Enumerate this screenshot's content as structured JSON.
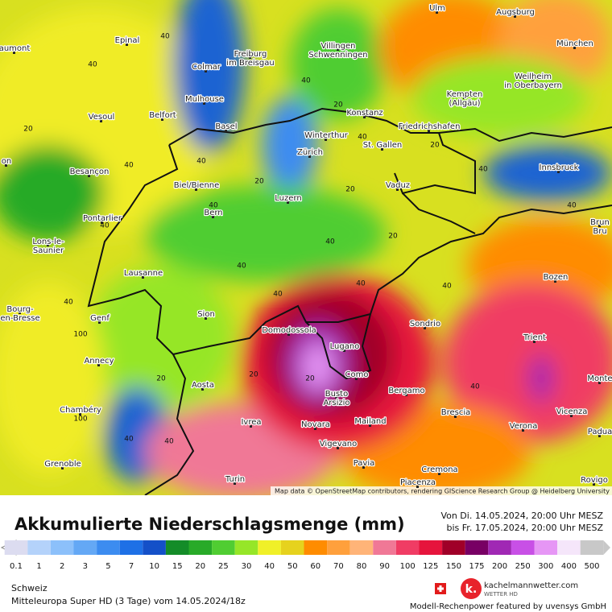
{
  "map": {
    "cities": [
      [
        "Ulm"
      ],
      [
        "Augsburg"
      ],
      [
        "Epinal"
      ],
      [
        "aumont"
      ],
      [
        "Colmar"
      ],
      [
        "Freiburg",
        "im Breisgau"
      ],
      [
        "Villingen",
        "Schwenningen"
      ],
      [
        "München"
      ],
      [
        "Weilheim",
        "in Oberbayern"
      ],
      [
        "Kempten",
        "(Allgäu)"
      ],
      [
        "Mulhouse"
      ],
      [
        "Vesoul"
      ],
      [
        "Belfort"
      ],
      [
        "Basel"
      ],
      [
        "Konstanz"
      ],
      [
        "Friedrichshafen"
      ],
      [
        "Winterthur"
      ],
      [
        "St. Gallen"
      ],
      [
        "Zürich"
      ],
      [
        "Innsbruck"
      ],
      [
        "on"
      ],
      [
        "Besançon"
      ],
      [
        "Biel/Bienne"
      ],
      [
        "Vaduz"
      ],
      [
        "Luzern"
      ],
      [
        "Bern"
      ],
      [
        "Pontarlier"
      ],
      [
        "Brun",
        "Bru"
      ],
      [
        "Lons-le-",
        "Saunier"
      ],
      [
        "Lausanne"
      ],
      [
        "Bozen"
      ],
      [
        "Bourg-",
        "en-Bresse"
      ],
      [
        "Genf"
      ],
      [
        "Sion"
      ],
      [
        "Sondrio"
      ],
      [
        "Domodossola"
      ],
      [
        "Lugano"
      ],
      [
        "Trient"
      ],
      [
        "Annecy"
      ],
      [
        "Como"
      ],
      [
        "Aosta"
      ],
      [
        "Bergamo"
      ],
      [
        "Busto",
        "Arsizio"
      ],
      [
        "Monte"
      ],
      [
        "Chambéry"
      ],
      [
        "Brescia"
      ],
      [
        "Vicenza"
      ],
      [
        "Ivrea"
      ],
      [
        "Novara"
      ],
      [
        "Mailand"
      ],
      [
        "Verona"
      ],
      [
        "Padua"
      ],
      [
        "Vigevano"
      ],
      [
        "Grenoble"
      ],
      [
        "Pavia"
      ],
      [
        "Cremona"
      ],
      [
        "Turin"
      ],
      [
        "Piacenza"
      ],
      [
        "Rovigo"
      ]
    ],
    "contour_labels": [
      40,
      40,
      20,
      40,
      40,
      40,
      20,
      40,
      20,
      40,
      20,
      40,
      40,
      20,
      40,
      20,
      40,
      40,
      20,
      40,
      40,
      100,
      100,
      40,
      40,
      40,
      20,
      20,
      40,
      40
    ],
    "attribution": "Map data © OpenStreetMap contributors, rendering GIScience Research Group @ Heidelberg University"
  },
  "legend": {
    "title": "Akkumulierte Niederschlagsmenge (mm)",
    "period_from": "Von Di. 14.05.2024, 20:00 Uhr MESZ",
    "period_to": "bis Fr. 17.05.2024, 20:00 Uhr MESZ",
    "values": [
      0.1,
      1,
      2,
      3,
      5,
      7,
      10,
      15,
      20,
      25,
      30,
      40,
      50,
      60,
      70,
      80,
      90,
      100,
      125,
      150,
      175,
      200,
      250,
      300,
      400,
      500
    ],
    "colors": [
      "#dcdcf0",
      "#b4d2fa",
      "#8cc0fa",
      "#64a8f5",
      "#3c8cf0",
      "#1e70e6",
      "#1450c8",
      "#148c28",
      "#28aa28",
      "#50cd32",
      "#96e628",
      "#f0f028",
      "#e6d21e",
      "#ff8c00",
      "#ffa03c",
      "#ffb478",
      "#f07896",
      "#f03c64",
      "#e6143c",
      "#a00028",
      "#780064",
      "#a028b4",
      "#c850e6",
      "#e696f5",
      "#f5e6fa",
      "#c8c8c8"
    ]
  },
  "footer": {
    "region": "Schweiz",
    "model": "Mitteleuropa Super HD (3 Tage) vom 14.05.2024/18z",
    "brand": "kachelmannwetter.com",
    "brand_sub": "WETTER HD",
    "credit": "Modell-Rechenpower featured by uvensys GmbH"
  }
}
